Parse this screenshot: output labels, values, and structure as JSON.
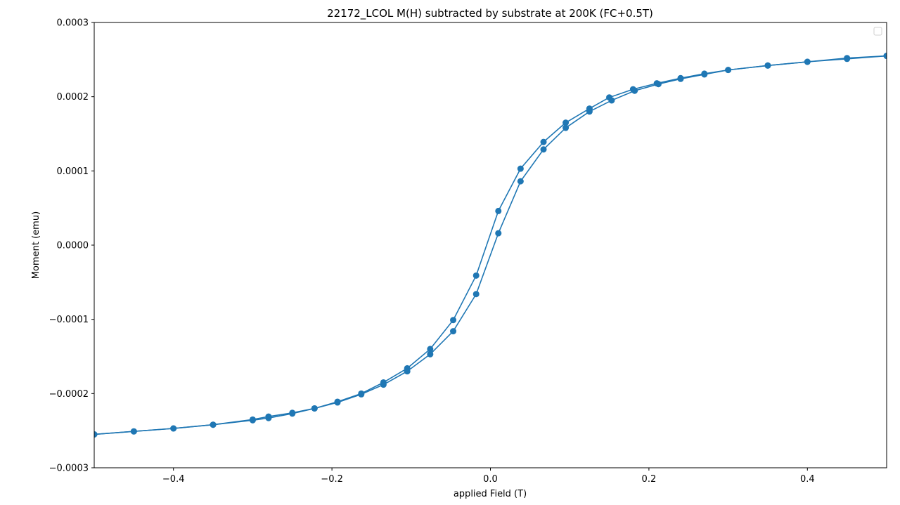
{
  "chart_data": {
    "type": "line",
    "title": "22172_LCOL M(H) subtracted by substrate at 200K (FC+0.5T)",
    "xlabel": "applied Field (T)",
    "ylabel": "Moment (emu)",
    "xlim": [
      -0.5,
      0.5
    ],
    "ylim": [
      -0.0003,
      0.0003
    ],
    "xticks": [
      -0.4,
      -0.2,
      0.0,
      0.2,
      0.4
    ],
    "xtick_labels": [
      "−0.4",
      "−0.2",
      "0.0",
      "0.2",
      "0.4"
    ],
    "yticks": [
      -0.0003,
      -0.0002,
      -0.0001,
      0.0,
      0.0001,
      0.0002,
      0.0003
    ],
    "ytick_labels": [
      "−0.0003",
      "−0.0002",
      "−0.0001",
      "0.0000",
      "0.0001",
      "0.0002",
      "0.0003"
    ],
    "grid": false,
    "legend": "top-right",
    "color": "#1f77b4",
    "marker": "circle",
    "series": [
      {
        "x": [
          0.5,
          0.45,
          0.4,
          0.35,
          0.3,
          0.27,
          0.24,
          0.21,
          0.18,
          0.15,
          0.125,
          0.095,
          0.067,
          0.038,
          0.01,
          -0.018,
          -0.047,
          -0.076,
          -0.105,
          -0.135,
          -0.163,
          -0.193,
          -0.222,
          -0.25,
          -0.28,
          -0.3,
          -0.35,
          -0.4,
          -0.45,
          -0.5
        ],
        "y": [
          0.000255,
          0.000251,
          0.000247,
          0.000242,
          0.000236,
          0.000231,
          0.000225,
          0.000218,
          0.00021,
          0.000199,
          0.000184,
          0.000165,
          0.000139,
          0.000103,
          4.6e-05,
          -4.1e-05,
          -0.000101,
          -0.00014,
          -0.000166,
          -0.000185,
          -0.0002,
          -0.000211,
          -0.00022,
          -0.000226,
          -0.000231,
          -0.000235,
          -0.000242,
          -0.000247,
          -0.000251,
          -0.000255
        ]
      },
      {
        "x": [
          -0.5,
          -0.45,
          -0.4,
          -0.35,
          -0.3,
          -0.28,
          -0.25,
          -0.222,
          -0.193,
          -0.163,
          -0.135,
          -0.105,
          -0.076,
          -0.047,
          -0.018,
          0.01,
          0.038,
          0.067,
          0.095,
          0.125,
          0.153,
          0.182,
          0.212,
          0.24,
          0.27,
          0.3,
          0.35,
          0.4,
          0.45,
          0.5
        ],
        "y": [
          -0.000255,
          -0.000251,
          -0.000247,
          -0.000242,
          -0.000236,
          -0.000233,
          -0.000227,
          -0.00022,
          -0.000212,
          -0.000201,
          -0.000188,
          -0.00017,
          -0.000147,
          -0.000116,
          -6.6e-05,
          1.6e-05,
          8.6e-05,
          0.000129,
          0.000158,
          0.00018,
          0.000195,
          0.000208,
          0.000217,
          0.000224,
          0.00023,
          0.000236,
          0.000242,
          0.000247,
          0.000252,
          0.000255
        ]
      }
    ]
  }
}
